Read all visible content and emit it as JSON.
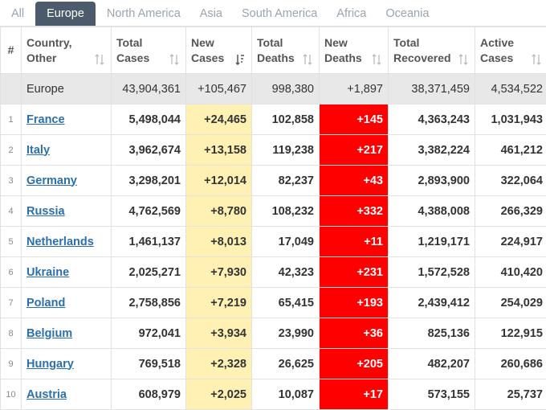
{
  "tabs": [
    "All",
    "Europe",
    "North America",
    "Asia",
    "South America",
    "Africa",
    "Oceania"
  ],
  "active_tab": 1,
  "headers": {
    "num": "#",
    "country": [
      "Country,",
      "Other"
    ],
    "total_cases": [
      "Total",
      "Cases"
    ],
    "new_cases": [
      "New",
      "Cases"
    ],
    "total_deaths": [
      "Total",
      "Deaths"
    ],
    "new_deaths": [
      "New",
      "Deaths"
    ],
    "total_recovered": [
      "Total",
      "Recovered"
    ],
    "active_cases": [
      "Active",
      "Cases"
    ]
  },
  "total_row": {
    "country": "Europe",
    "total_cases": "43,904,361",
    "new_cases": "+105,467",
    "total_deaths": "998,380",
    "new_deaths": "+1,897",
    "total_recovered": "38,371,459",
    "active_cases": "4,534,522"
  },
  "rows": [
    {
      "num": "1",
      "country": "France",
      "total_cases": "5,498,044",
      "new_cases": "+24,465",
      "total_deaths": "102,858",
      "new_deaths": "+145",
      "total_recovered": "4,363,243",
      "active_cases": "1,031,943"
    },
    {
      "num": "2",
      "country": "Italy",
      "total_cases": "3,962,674",
      "new_cases": "+13,158",
      "total_deaths": "119,238",
      "new_deaths": "+217",
      "total_recovered": "3,382,224",
      "active_cases": "461,212"
    },
    {
      "num": "3",
      "country": "Germany",
      "total_cases": "3,298,201",
      "new_cases": "+12,014",
      "total_deaths": "82,237",
      "new_deaths": "+43",
      "total_recovered": "2,893,900",
      "active_cases": "322,064"
    },
    {
      "num": "4",
      "country": "Russia",
      "total_cases": "4,762,569",
      "new_cases": "+8,780",
      "total_deaths": "108,232",
      "new_deaths": "+332",
      "total_recovered": "4,388,008",
      "active_cases": "266,329"
    },
    {
      "num": "5",
      "country": "Netherlands",
      "total_cases": "1,461,137",
      "new_cases": "+8,013",
      "total_deaths": "17,049",
      "new_deaths": "+11",
      "total_recovered": "1,219,171",
      "active_cases": "224,917"
    },
    {
      "num": "6",
      "country": "Ukraine",
      "total_cases": "2,025,271",
      "new_cases": "+7,930",
      "total_deaths": "42,323",
      "new_deaths": "+231",
      "total_recovered": "1,572,528",
      "active_cases": "410,420"
    },
    {
      "num": "7",
      "country": "Poland",
      "total_cases": "2,758,856",
      "new_cases": "+7,219",
      "total_deaths": "65,415",
      "new_deaths": "+193",
      "total_recovered": "2,439,412",
      "active_cases": "254,029"
    },
    {
      "num": "8",
      "country": "Belgium",
      "total_cases": "972,041",
      "new_cases": "+3,934",
      "total_deaths": "23,990",
      "new_deaths": "+36",
      "total_recovered": "825,136",
      "active_cases": "122,915"
    },
    {
      "num": "9",
      "country": "Hungary",
      "total_cases": "769,518",
      "new_cases": "+2,328",
      "total_deaths": "26,625",
      "new_deaths": "+205",
      "total_recovered": "482,207",
      "active_cases": "260,686"
    },
    {
      "num": "10",
      "country": "Austria",
      "total_cases": "608,979",
      "new_cases": "+2,025",
      "total_deaths": "10,087",
      "new_deaths": "+17",
      "total_recovered": "573,155",
      "active_cases": "25,737"
    }
  ],
  "colors": {
    "active_tab_bg": "#4b5b6b",
    "new_cases_bg": "#fff0b3",
    "new_deaths_bg": "#ff0000",
    "link": "#2a6fb0",
    "total_row_bg": "#e8e8e8"
  }
}
